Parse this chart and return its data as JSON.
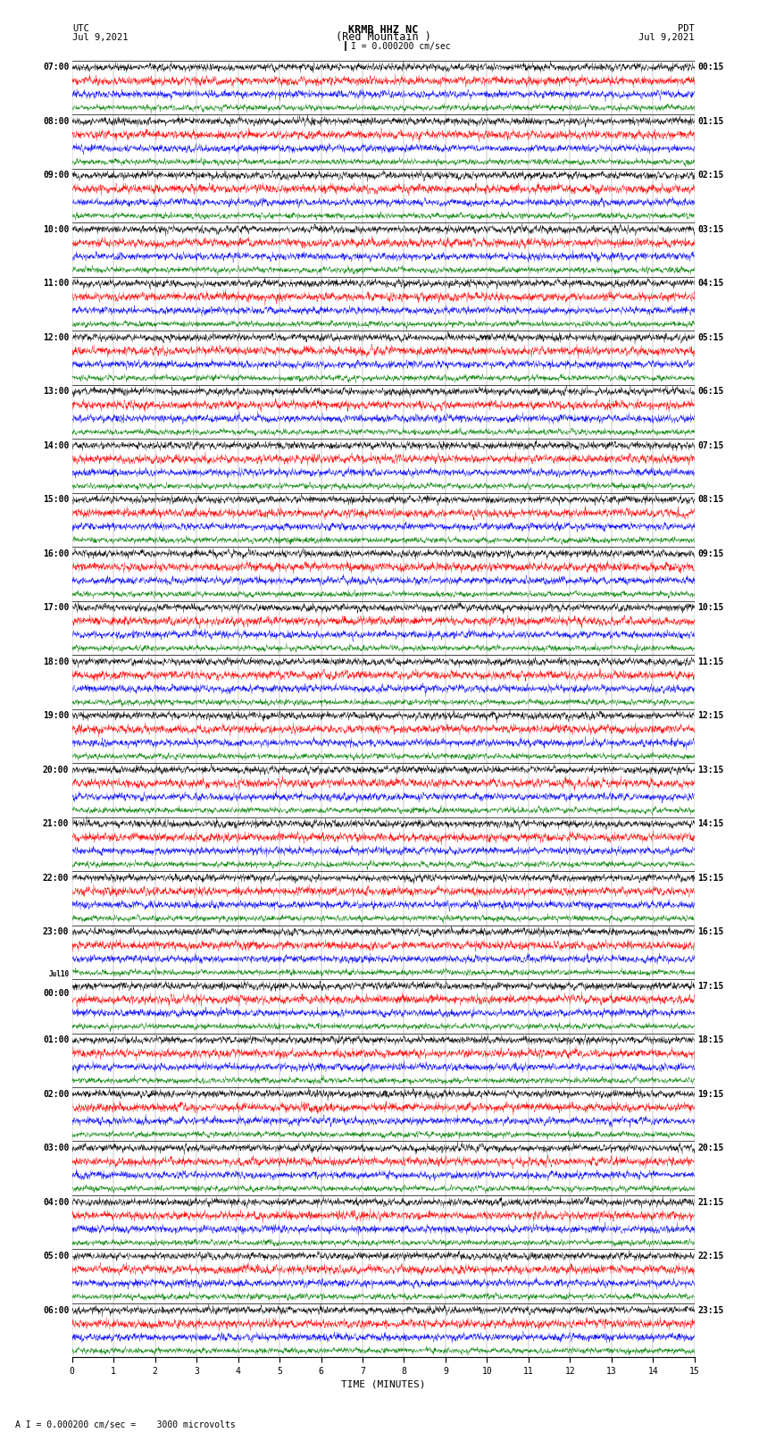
{
  "title_line1": "KRMB HHZ NC",
  "title_line2": "(Red Mountain )",
  "scale_text": "I = 0.000200 cm/sec",
  "bottom_scale_text": "A I = 0.000200 cm/sec =    3000 microvolts",
  "utc_label": "UTC",
  "utc_date": "Jul 9,2021",
  "pdt_label": "PDT",
  "pdt_date": "Jul 9,2021",
  "xlabel": "TIME (MINUTES)",
  "xlim": [
    0,
    15
  ],
  "xticks": [
    0,
    1,
    2,
    3,
    4,
    5,
    6,
    7,
    8,
    9,
    10,
    11,
    12,
    13,
    14,
    15
  ],
  "background_color": "#ffffff",
  "trace_colors": [
    "black",
    "red",
    "blue",
    "green"
  ],
  "hour_labels_utc": [
    "07:00",
    "08:00",
    "09:00",
    "10:00",
    "11:00",
    "12:00",
    "13:00",
    "14:00",
    "15:00",
    "16:00",
    "17:00",
    "18:00",
    "19:00",
    "20:00",
    "21:00",
    "22:00",
    "23:00",
    "Jul10\n00:00",
    "01:00",
    "02:00",
    "03:00",
    "04:00",
    "05:00",
    "06:00"
  ],
  "hour_labels_pdt": [
    "00:15",
    "01:15",
    "02:15",
    "03:15",
    "04:15",
    "05:15",
    "06:15",
    "07:15",
    "08:15",
    "09:15",
    "10:15",
    "11:15",
    "12:15",
    "13:15",
    "14:15",
    "15:15",
    "16:15",
    "17:15",
    "18:15",
    "19:15",
    "20:15",
    "21:15",
    "22:15",
    "23:15"
  ],
  "n_hours": 24,
  "traces_per_hour": 4,
  "noise_seed": 42,
  "n_pts": 3000,
  "amplitude_per_trace": [
    0.28,
    0.32,
    0.28,
    0.22
  ]
}
